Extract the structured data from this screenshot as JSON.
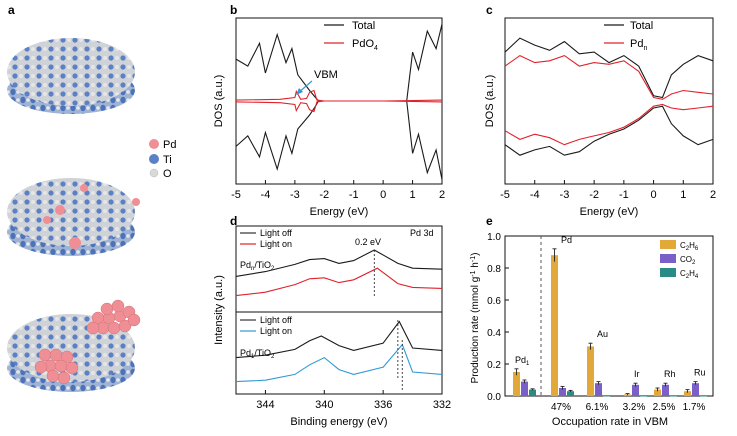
{
  "panel_labels": {
    "a": "a",
    "b": "b",
    "c": "c",
    "d": "d",
    "e": "e"
  },
  "legend_a": {
    "pd": "Pd",
    "ti": "Ti",
    "o": "O"
  },
  "colors": {
    "pd": "#ef8f95",
    "ti": "#5b80c4",
    "o": "#d9d9d9",
    "black": "#1a1a1a",
    "red": "#e0222c",
    "blue": "#2f9bd6",
    "gold": "#e2a83a",
    "purple": "#7a5fc9",
    "teal": "#2a8b86"
  },
  "chart_data": [
    {
      "id": "b",
      "type": "line",
      "title": "",
      "xlabel": "Energy (eV)",
      "ylabel": "DOS (a.u.)",
      "xlim": [
        -5,
        2
      ],
      "xticks": [
        "-5",
        "-4",
        "-3",
        "-2",
        "-1",
        "0",
        "1",
        "2"
      ],
      "legend": [
        "Total",
        "PdO4"
      ],
      "annotation": "VBM",
      "series": [
        {
          "name": "Total",
          "x": [
            -5,
            -4.6,
            -4.2,
            -4.0,
            -3.6,
            -3.3,
            -3.1,
            -2.9,
            -2.5,
            -2.3,
            -2.2,
            -1.5,
            0,
            0.8,
            1.0,
            1.2,
            1.5,
            1.8,
            2.0
          ],
          "upper": [
            2.4,
            2.0,
            3.3,
            1.6,
            3.8,
            2.2,
            3.0,
            1.5,
            0.6,
            0.2,
            0.0,
            0.0,
            0.0,
            0.0,
            2.8,
            1.8,
            4.0,
            3.0,
            4.4
          ],
          "lower": [
            -2.6,
            -2.0,
            -3.2,
            -1.8,
            -3.9,
            -2.0,
            -3.0,
            -1.6,
            -0.8,
            -0.3,
            0.0,
            0.0,
            0.0,
            0.0,
            -3.0,
            -1.9,
            -4.1,
            -2.8,
            -4.5
          ]
        },
        {
          "name": "PdO4",
          "x": [
            -5,
            -3.5,
            -3.0,
            -2.95,
            -2.8,
            -2.6,
            -2.5,
            -2.35,
            -2.25,
            -2.0,
            0,
            2.0
          ],
          "upper": [
            0.05,
            0.1,
            0.2,
            0.55,
            0.1,
            0.15,
            0.5,
            0.6,
            0.05,
            0.0,
            0.0,
            0.05
          ],
          "lower": [
            -0.05,
            -0.1,
            -0.2,
            -0.55,
            -0.1,
            -0.15,
            -0.5,
            -0.6,
            -0.05,
            0.0,
            0.0,
            -0.05
          ]
        }
      ]
    },
    {
      "id": "c",
      "type": "line",
      "title": "",
      "xlabel": "Energy (eV)",
      "ylabel": "DOS (a.u.)",
      "xlim": [
        -5,
        2
      ],
      "xticks": [
        "-5",
        "-4",
        "-3",
        "-2",
        "-1",
        "0",
        "1",
        "2"
      ],
      "legend": [
        "Total",
        "Pdn"
      ],
      "series": [
        {
          "name": "Total",
          "x": [
            -5,
            -4.5,
            -4.0,
            -3.5,
            -3.0,
            -2.5,
            -2.0,
            -1.5,
            -1.0,
            -0.5,
            0.0,
            0.3,
            0.6,
            1.0,
            1.5,
            2.0
          ],
          "upper": [
            2.8,
            3.6,
            3.2,
            2.9,
            3.4,
            2.7,
            2.8,
            2.2,
            2.6,
            2.0,
            0.3,
            0.2,
            1.5,
            2.1,
            2.6,
            2.3
          ],
          "lower": [
            -2.5,
            -3.1,
            -2.8,
            -2.6,
            -3.1,
            -2.9,
            -2.3,
            -1.9,
            -1.6,
            -1.1,
            -0.4,
            -0.3,
            -1.3,
            -2.0,
            -2.5,
            -2.2
          ]
        },
        {
          "name": "Pdn",
          "x": [
            -5,
            -4.5,
            -4.0,
            -3.5,
            -3.0,
            -2.5,
            -2.0,
            -1.5,
            -1.0,
            -0.5,
            0.0,
            0.3,
            0.6,
            1.0,
            1.5,
            2.0
          ],
          "upper": [
            2.0,
            2.6,
            2.2,
            2.3,
            2.6,
            2.0,
            2.2,
            2.1,
            2.3,
            1.7,
            0.2,
            0.1,
            0.4,
            0.6,
            0.5,
            0.4
          ],
          "lower": [
            -1.7,
            -2.2,
            -1.9,
            -2.1,
            -2.5,
            -2.2,
            -2.0,
            -1.8,
            -1.5,
            -1.0,
            -0.3,
            -0.2,
            -0.4,
            -0.5,
            -0.4,
            -0.3
          ]
        }
      ]
    },
    {
      "id": "d",
      "type": "line",
      "title": "",
      "xlabel": "Binding energy (eV)",
      "ylabel": "Intensity (a.u.)",
      "xlim": [
        346,
        332
      ],
      "xticks": [
        "344",
        "340",
        "336",
        "332"
      ],
      "corner_label": "Pd 3d",
      "shift_label": "0.2 eV",
      "top_sample": "Pdn/TiO2",
      "bottom_sample": "Pd1/TiO2",
      "legend_top": [
        "Light off",
        "Light on"
      ],
      "legend_bottom": [
        "Light off",
        "Light on"
      ],
      "series": [
        {
          "name": "Light off (Pdn)",
          "x": [
            346,
            344,
            342,
            341,
            340,
            339,
            338,
            336.6,
            335,
            334,
            332
          ],
          "y": [
            0.45,
            0.55,
            0.7,
            0.8,
            0.82,
            0.72,
            0.78,
            1.0,
            0.72,
            0.62,
            0.6
          ]
        },
        {
          "name": "Light on (Pdn)",
          "x": [
            346,
            344,
            342,
            341,
            340,
            339,
            338,
            336.4,
            335,
            334,
            332
          ],
          "y": [
            0.05,
            0.12,
            0.28,
            0.4,
            0.42,
            0.32,
            0.38,
            0.62,
            0.3,
            0.22,
            0.2
          ]
        },
        {
          "name": "Light off (Pd1)",
          "x": [
            346,
            344,
            342,
            341,
            340.2,
            339,
            338,
            336,
            334.9,
            334,
            332
          ],
          "y": [
            0.55,
            0.6,
            0.72,
            0.9,
            1.0,
            0.8,
            0.7,
            0.85,
            1.3,
            0.75,
            0.7
          ]
        },
        {
          "name": "Light on (Pd1)",
          "x": [
            346,
            344,
            342,
            341,
            340.0,
            339,
            338,
            336,
            334.7,
            334,
            332
          ],
          "y": [
            0.05,
            0.08,
            0.2,
            0.4,
            0.55,
            0.3,
            0.2,
            0.35,
            0.82,
            0.25,
            0.2
          ]
        }
      ]
    },
    {
      "id": "e",
      "type": "bar",
      "title": "",
      "xlabel": "Occupation rate in VBM",
      "ylabel": "Production rate (mmol g-1 h-1)",
      "ylim": [
        0,
        1.0
      ],
      "yticks": [
        "0.0",
        "0.2",
        "0.4",
        "0.6",
        "0.8",
        "1.0"
      ],
      "categories": [
        "Pd1",
        "Pd",
        "Au",
        "Ir",
        "Rh",
        "Ru"
      ],
      "occupation": [
        "",
        "47%",
        "6.1%",
        "3.2%",
        "2.5%",
        "1.7%"
      ],
      "legend": [
        "C2H6",
        "CO2",
        "C2H4"
      ],
      "series": [
        {
          "name": "C2H6",
          "values": [
            0.15,
            0.88,
            0.31,
            0.01,
            0.04,
            0.03
          ],
          "errors": [
            0.02,
            0.04,
            0.02,
            0.005,
            0.01,
            0.01
          ]
        },
        {
          "name": "CO2",
          "values": [
            0.09,
            0.05,
            0.08,
            0.07,
            0.07,
            0.08
          ],
          "errors": [
            0.01,
            0.01,
            0.01,
            0.01,
            0.01,
            0.01
          ]
        },
        {
          "name": "C2H4",
          "values": [
            0.04,
            0.03,
            0.0,
            0.0,
            0.0,
            0.0
          ],
          "errors": [
            0.005,
            0.005,
            0,
            0,
            0,
            0
          ]
        }
      ]
    }
  ]
}
